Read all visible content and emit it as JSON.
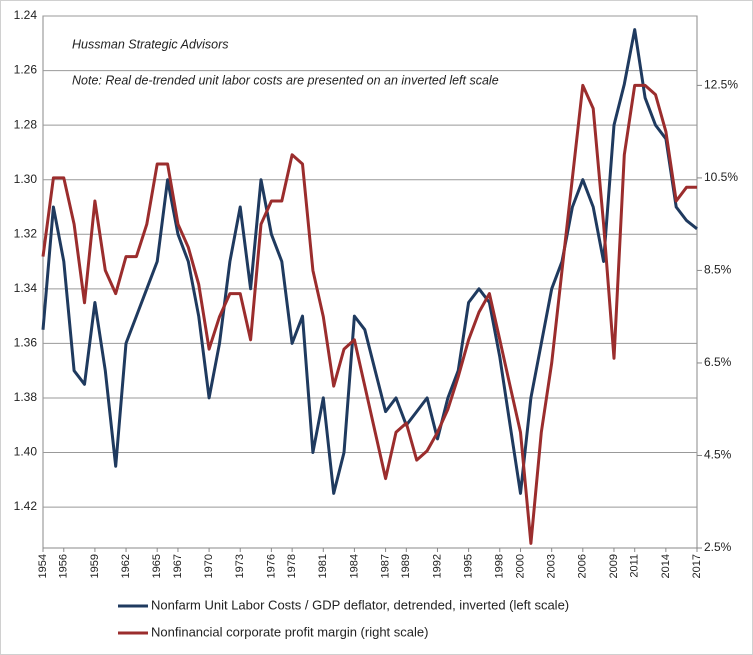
{
  "chart_data": {
    "type": "line",
    "annotations": [
      "Hussman Strategic Advisors",
      "Note: Real de-trended unit labor costs are presented on an inverted left scale"
    ],
    "x": [
      1954,
      1955,
      1956,
      1957,
      1958,
      1959,
      1960,
      1961,
      1962,
      1963,
      1964,
      1965,
      1966,
      1967,
      1968,
      1969,
      1970,
      1971,
      1972,
      1973,
      1974,
      1975,
      1976,
      1977,
      1978,
      1979,
      1980,
      1981,
      1982,
      1983,
      1984,
      1985,
      1986,
      1987,
      1988,
      1989,
      1990,
      1991,
      1992,
      1993,
      1994,
      1995,
      1996,
      1997,
      1998,
      1999,
      2000,
      2001,
      2002,
      2003,
      2004,
      2005,
      2006,
      2007,
      2008,
      2009,
      2010,
      2011,
      2012,
      2013,
      2014,
      2015,
      2016,
      2017
    ],
    "series": [
      {
        "name": "Nonfarm Unit Labor Costs / GDP deflator, detrended, inverted (left scale)",
        "color": "#1f3a5f",
        "axis": "y",
        "values": [
          1.355,
          1.31,
          1.33,
          1.37,
          1.375,
          1.345,
          1.37,
          1.405,
          1.36,
          1.35,
          1.34,
          1.33,
          1.3,
          1.32,
          1.33,
          1.35,
          1.38,
          1.36,
          1.33,
          1.31,
          1.34,
          1.3,
          1.32,
          1.33,
          1.36,
          1.35,
          1.4,
          1.38,
          1.415,
          1.4,
          1.35,
          1.355,
          1.37,
          1.385,
          1.38,
          1.39,
          1.385,
          1.38,
          1.395,
          1.38,
          1.37,
          1.345,
          1.34,
          1.345,
          1.365,
          1.39,
          1.415,
          1.38,
          1.36,
          1.34,
          1.33,
          1.31,
          1.3,
          1.31,
          1.33,
          1.28,
          1.265,
          1.245,
          1.27,
          1.28,
          1.285,
          1.31,
          1.315,
          1.318
        ]
      },
      {
        "name": "Nonfinancial corporate profit margin (right scale)",
        "color": "#9b2d2d",
        "axis": "y2",
        "values": [
          8.8,
          10.5,
          10.5,
          9.5,
          7.8,
          10.0,
          8.5,
          8.0,
          8.8,
          8.8,
          9.5,
          10.8,
          10.8,
          9.5,
          9.0,
          8.2,
          6.8,
          7.5,
          8.0,
          8.0,
          7.0,
          9.5,
          10.0,
          10.0,
          11.0,
          10.8,
          8.5,
          7.5,
          6.0,
          6.8,
          7.0,
          6.0,
          5.0,
          4.0,
          5.0,
          5.2,
          4.4,
          4.6,
          5.0,
          5.5,
          6.2,
          7.0,
          7.6,
          8.0,
          7.0,
          6.0,
          5.0,
          2.6,
          5.0,
          6.5,
          8.5,
          10.5,
          12.5,
          12.0,
          9.5,
          6.6,
          11.0,
          12.5,
          12.5,
          12.3,
          11.5,
          10.0,
          10.3,
          10.3
        ]
      }
    ],
    "xlim": [
      1954,
      2017
    ],
    "xticks": [
      1954,
      1956,
      1959,
      1962,
      1965,
      1967,
      1970,
      1973,
      1976,
      1978,
      1981,
      1984,
      1987,
      1989,
      1992,
      1995,
      1998,
      2000,
      2003,
      2006,
      2009,
      2011,
      2014,
      2017
    ],
    "ylim": [
      1.24,
      1.435
    ],
    "y_inverted": true,
    "yticks": [
      1.24,
      1.26,
      1.28,
      {
        "value": 1.3,
        "label": "1.30"
      },
      1.32,
      1.34,
      1.36,
      1.38,
      {
        "value": 1.4,
        "label": "1.40"
      },
      1.42
    ],
    "y2lim": [
      2.5,
      14.0
    ],
    "y2ticks": [
      {
        "value": 2.5,
        "label": "2.5%"
      },
      {
        "value": 4.5,
        "label": "4.5%"
      },
      {
        "value": 6.5,
        "label": "6.5%"
      },
      {
        "value": 8.5,
        "label": "8.5%"
      },
      {
        "value": 10.5,
        "label": "10.5%"
      },
      {
        "value": 12.5,
        "label": "12.5%"
      }
    ],
    "grid": true
  }
}
